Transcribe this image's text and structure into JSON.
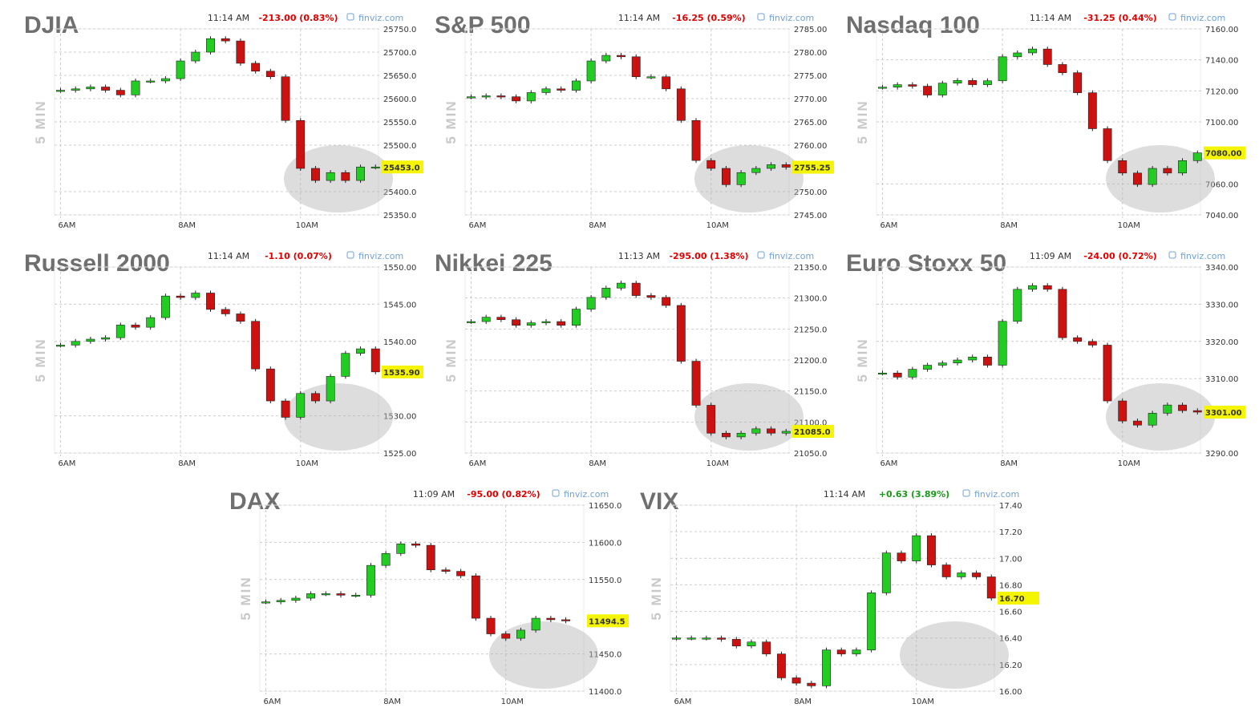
{
  "chart_data": [
    {
      "type": "candlestick",
      "title": "DJIA",
      "time": "11:14 AM",
      "change": "-213.00 (0.83%)",
      "change_color": "#e00000",
      "source": "finviz.com",
      "ylabel": "5 MIN",
      "x": [
        6,
        6.25,
        6.5,
        6.75,
        7,
        7.25,
        7.5,
        7.75,
        8,
        8.25,
        8.5,
        8.75,
        9,
        9.25,
        9.5,
        9.75,
        10,
        10.25,
        10.5,
        10.75,
        11,
        11.25
      ],
      "values": [
        25618,
        25621,
        25625,
        25618,
        25608,
        25638,
        25638,
        25643,
        25681,
        25700,
        25729,
        25724,
        25676,
        25659,
        25647,
        25553,
        25450,
        25424,
        25441,
        25424,
        25453,
        25453
      ],
      "last": {
        "value": 25453,
        "label": "25453.0"
      },
      "xlim": [
        5.9,
        11.3
      ],
      "xticks": [
        {
          "value": 6,
          "label": "6AM"
        },
        {
          "value": 8,
          "label": "8AM"
        },
        {
          "value": 10,
          "label": "10AM"
        }
      ],
      "ylim": [
        25350,
        25750
      ],
      "yticks": [
        {
          "value": 25750,
          "label": "25750.0"
        },
        {
          "value": 25700,
          "label": "25700.0"
        },
        {
          "value": 25650,
          "label": "25650.0"
        },
        {
          "value": 25600,
          "label": "25600.0"
        },
        {
          "value": 25550,
          "label": "25550.0"
        },
        {
          "value": 25500,
          "label": "25500.0"
        },
        {
          "value": 25400,
          "label": "25400.0"
        },
        {
          "value": 25350,
          "label": "25350.0"
        }
      ],
      "up_color": "#22cc22",
      "down_color": "#cc1111",
      "grid": true
    },
    {
      "type": "candlestick",
      "title": "S&P 500",
      "time": "11:14 AM",
      "change": "-16.25 (0.59%)",
      "change_color": "#e00000",
      "source": "finviz.com",
      "ylabel": "5 MIN",
      "x": [
        6,
        6.25,
        6.5,
        6.75,
        7,
        7.25,
        7.5,
        7.75,
        8,
        8.25,
        8.5,
        8.75,
        9,
        9.25,
        9.5,
        9.75,
        10,
        10.25,
        10.5,
        10.75,
        11,
        11.25
      ],
      "values": [
        2770.4,
        2770.6,
        2770.4,
        2769.5,
        2771.3,
        2772.1,
        2771.8,
        2773.8,
        2778.1,
        2779.3,
        2779,
        2774.7,
        2774.7,
        2772.1,
        2765.3,
        2756.7,
        2755,
        2751.5,
        2754.1,
        2755,
        2755.8,
        2755.25
      ],
      "last": {
        "value": 2755.25,
        "label": "2755.25"
      },
      "xlim": [
        5.9,
        11.3
      ],
      "xticks": [
        {
          "value": 6,
          "label": "6AM"
        },
        {
          "value": 8,
          "label": "8AM"
        },
        {
          "value": 10,
          "label": "10AM"
        }
      ],
      "ylim": [
        2745,
        2785
      ],
      "yticks": [
        {
          "value": 2785,
          "label": "2785.00"
        },
        {
          "value": 2780,
          "label": "2780.00"
        },
        {
          "value": 2775,
          "label": "2775.00"
        },
        {
          "value": 2770,
          "label": "2770.00"
        },
        {
          "value": 2765,
          "label": "2765.00"
        },
        {
          "value": 2760,
          "label": "2760.00"
        },
        {
          "value": 2750,
          "label": "2750.00"
        },
        {
          "value": 2745,
          "label": "2745.00"
        }
      ],
      "up_color": "#22cc22",
      "down_color": "#cc1111",
      "grid": true
    },
    {
      "type": "candlestick",
      "title": "Nasdaq 100",
      "time": "11:14 AM",
      "change": "-31.25 (0.44%)",
      "change_color": "#e00000",
      "source": "finviz.com",
      "ylabel": "5 MIN",
      "x": [
        6,
        6.25,
        6.5,
        6.75,
        7,
        7.25,
        7.5,
        7.75,
        8,
        8.25,
        8.5,
        8.75,
        9,
        9.25,
        9.5,
        9.75,
        10,
        10.25,
        10.5,
        10.75,
        11,
        11.25
      ],
      "values": [
        7122.4,
        7124,
        7123,
        7117.3,
        7125,
        7126.7,
        7124,
        7126.5,
        7142,
        7144.5,
        7147,
        7137,
        7131.7,
        7118.8,
        7095.6,
        7075,
        7067,
        7059.6,
        7070,
        7067,
        7075,
        7080
      ],
      "last": {
        "value": 7080,
        "label": "7080.00"
      },
      "xlim": [
        5.9,
        11.3
      ],
      "xticks": [
        {
          "value": 6,
          "label": "6AM"
        },
        {
          "value": 8,
          "label": "8AM"
        },
        {
          "value": 10,
          "label": "10AM"
        }
      ],
      "ylim": [
        7040,
        7160
      ],
      "yticks": [
        {
          "value": 7160,
          "label": "7160.00"
        },
        {
          "value": 7140,
          "label": "7140.00"
        },
        {
          "value": 7120,
          "label": "7120.00"
        },
        {
          "value": 7100,
          "label": "7100.00"
        },
        {
          "value": 7060,
          "label": "7060.00"
        },
        {
          "value": 7040,
          "label": "7040.00"
        }
      ],
      "up_color": "#22cc22",
      "down_color": "#cc1111",
      "grid": true
    },
    {
      "type": "candlestick",
      "title": "Russell 2000",
      "time": "11:14 AM",
      "change": "-1.10 (0.07%)",
      "change_color": "#e00000",
      "source": "finviz.com",
      "ylabel": "5 MIN",
      "x": [
        6,
        6.25,
        6.5,
        6.75,
        7,
        7.25,
        7.5,
        7.75,
        8,
        8.25,
        8.5,
        8.75,
        9,
        9.25,
        9.5,
        9.75,
        10,
        10.25,
        10.5,
        10.75,
        11,
        11.25
      ],
      "values": [
        1539.5,
        1540,
        1540.3,
        1540.5,
        1542.2,
        1541.9,
        1543.2,
        1546.1,
        1545.9,
        1546.5,
        1544.3,
        1543.7,
        1542.7,
        1536.3,
        1532,
        1529.8,
        1533,
        1532,
        1535.3,
        1538.4,
        1539,
        1535.9
      ],
      "last": {
        "value": 1535.9,
        "label": "1535.90"
      },
      "xlim": [
        5.9,
        11.3
      ],
      "xticks": [
        {
          "value": 6,
          "label": "6AM"
        },
        {
          "value": 8,
          "label": "8AM"
        },
        {
          "value": 10,
          "label": "10AM"
        }
      ],
      "ylim": [
        1525,
        1550
      ],
      "yticks": [
        {
          "value": 1550,
          "label": "1550.00"
        },
        {
          "value": 1545,
          "label": "1545.00"
        },
        {
          "value": 1540,
          "label": "1540.00"
        },
        {
          "value": 1530,
          "label": "1530.00"
        },
        {
          "value": 1525,
          "label": "1525.00"
        }
      ],
      "up_color": "#22cc22",
      "down_color": "#cc1111",
      "grid": true
    },
    {
      "type": "candlestick",
      "title": "Nikkei 225",
      "time": "11:13 AM",
      "change": "-295.00 (1.38%)",
      "change_color": "#e00000",
      "source": "finviz.com",
      "ylabel": "5 MIN",
      "x": [
        6,
        6.25,
        6.5,
        6.75,
        7,
        7.25,
        7.5,
        7.75,
        8,
        8.25,
        8.5,
        8.75,
        9,
        9.25,
        9.5,
        9.75,
        10,
        10.25,
        10.5,
        10.75,
        11,
        11.25
      ],
      "values": [
        21262,
        21269,
        21265,
        21256,
        21260,
        21262,
        21256,
        21282,
        21301,
        21316,
        21324,
        21304,
        21301,
        21288,
        21198,
        21127,
        21082,
        21076,
        21082,
        21089,
        21082,
        21085
      ],
      "last": {
        "value": 21085,
        "label": "21085.0"
      },
      "xlim": [
        5.9,
        11.3
      ],
      "xticks": [
        {
          "value": 6,
          "label": "6AM"
        },
        {
          "value": 8,
          "label": "8AM"
        },
        {
          "value": 10,
          "label": "10AM"
        }
      ],
      "ylim": [
        21050,
        21350
      ],
      "yticks": [
        {
          "value": 21350,
          "label": "21350.0"
        },
        {
          "value": 21300,
          "label": "21300.0"
        },
        {
          "value": 21250,
          "label": "21250.0"
        },
        {
          "value": 21200,
          "label": "21200.0"
        },
        {
          "value": 21150,
          "label": "21150.0"
        },
        {
          "value": 21100,
          "label": "21100.0"
        },
        {
          "value": 21050,
          "label": "21050.0"
        }
      ],
      "up_color": "#22cc22",
      "down_color": "#cc1111",
      "grid": true
    },
    {
      "type": "candlestick",
      "title": "Euro Stoxx 50",
      "time": "11:09 AM",
      "change": "-24.00 (0.72%)",
      "change_color": "#e00000",
      "source": "finviz.com",
      "ylabel": "5 MIN",
      "x": [
        6,
        6.25,
        6.5,
        6.75,
        7,
        7.25,
        7.5,
        7.75,
        8,
        8.25,
        8.5,
        8.75,
        9,
        9.25,
        9.5,
        9.75,
        10,
        10.25,
        10.5,
        10.75,
        11,
        11.25
      ],
      "values": [
        3311.5,
        3310.4,
        3312.5,
        3313.6,
        3314.2,
        3315,
        3315.8,
        3313.6,
        3325.4,
        3334,
        3335,
        3334,
        3321,
        3320,
        3319,
        3304,
        3298.6,
        3297.5,
        3300.7,
        3302.9,
        3301.4,
        3301
      ],
      "last": {
        "value": 3301,
        "label": "3301.00"
      },
      "xlim": [
        5.9,
        11.3
      ],
      "xticks": [
        {
          "value": 6,
          "label": "6AM"
        },
        {
          "value": 8,
          "label": "8AM"
        },
        {
          "value": 10,
          "label": "10AM"
        }
      ],
      "ylim": [
        3290,
        3340
      ],
      "yticks": [
        {
          "value": 3340,
          "label": "3340.00"
        },
        {
          "value": 3330,
          "label": "3330.00"
        },
        {
          "value": 3320,
          "label": "3320.00"
        },
        {
          "value": 3310,
          "label": "3310.00"
        },
        {
          "value": 3290,
          "label": "3290.00"
        }
      ],
      "up_color": "#22cc22",
      "down_color": "#cc1111",
      "grid": true
    },
    {
      "type": "candlestick",
      "title": "DAX",
      "time": "11:09 AM",
      "change": "-95.00 (0.82%)",
      "change_color": "#e00000",
      "source": "finviz.com",
      "ylabel": "5 MIN",
      "x": [
        6,
        6.25,
        6.5,
        6.75,
        7,
        7.25,
        7.5,
        7.75,
        8,
        8.25,
        8.5,
        8.75,
        9,
        9.25,
        9.5,
        9.75,
        10,
        10.25,
        10.5,
        10.75,
        11
      ],
      "values": [
        11520,
        11522,
        11525,
        11531,
        11531,
        11529,
        11529,
        11569,
        11585,
        11598,
        11596,
        11563,
        11561,
        11555,
        11498,
        11477,
        11471,
        11482,
        11498,
        11496,
        11494.5
      ],
      "last": {
        "value": 11494.5,
        "label": "11494.5"
      },
      "xlim": [
        5.9,
        11.3
      ],
      "xticks": [
        {
          "value": 6,
          "label": "6AM"
        },
        {
          "value": 8,
          "label": "8AM"
        },
        {
          "value": 10,
          "label": "10AM"
        }
      ],
      "ylim": [
        11400,
        11650
      ],
      "yticks": [
        {
          "value": 11650,
          "label": "11650.0"
        },
        {
          "value": 11600,
          "label": "11600.0"
        },
        {
          "value": 11550,
          "label": "11550.0"
        },
        {
          "value": 11450,
          "label": "11450.0"
        },
        {
          "value": 11400,
          "label": "11400.0"
        }
      ],
      "up_color": "#22cc22",
      "down_color": "#cc1111",
      "grid": true
    },
    {
      "type": "candlestick",
      "title": "VIX",
      "time": "11:14 AM",
      "change": "+0.63 (3.89%)",
      "change_color": "#1a9a1a",
      "source": "finviz.com",
      "ylabel": "5 MIN",
      "x": [
        6,
        6.25,
        6.5,
        6.75,
        7,
        7.25,
        7.5,
        7.75,
        8,
        8.25,
        8.5,
        8.75,
        9,
        9.25,
        9.5,
        9.75,
        10,
        10.25,
        10.5,
        10.75,
        11,
        11.25
      ],
      "values": [
        16.4,
        16.4,
        16.4,
        16.39,
        16.34,
        16.37,
        16.28,
        16.1,
        16.06,
        16.04,
        16.31,
        16.28,
        16.31,
        16.74,
        17.04,
        16.98,
        17.17,
        16.95,
        16.86,
        16.89,
        16.86,
        16.7
      ],
      "last": {
        "value": 16.7,
        "label": "16.70"
      },
      "xlim": [
        5.9,
        11.3
      ],
      "xticks": [
        {
          "value": 6,
          "label": "6AM"
        },
        {
          "value": 8,
          "label": "8AM"
        },
        {
          "value": 10,
          "label": "10AM"
        }
      ],
      "ylim": [
        16,
        17.4
      ],
      "yticks": [
        {
          "value": 17.4,
          "label": "17.40"
        },
        {
          "value": 17.2,
          "label": "17.20"
        },
        {
          "value": 17,
          "label": "17.00"
        },
        {
          "value": 16.8,
          "label": "16.80"
        },
        {
          "value": 16.6,
          "label": "16.60"
        },
        {
          "value": 16.4,
          "label": "16.40"
        },
        {
          "value": 16.2,
          "label": "16.20"
        },
        {
          "value": 16,
          "label": "16.00"
        }
      ],
      "up_color": "#22cc22",
      "down_color": "#cc1111",
      "grid": true
    }
  ]
}
